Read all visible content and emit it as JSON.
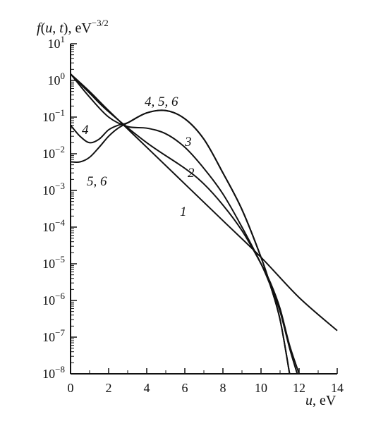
{
  "chart_data": {
    "type": "line",
    "y_scale": "log",
    "ylabel_parts": [
      "f",
      "(",
      "u",
      ", ",
      "t",
      "), eV",
      "−3/2"
    ],
    "xlabel_parts": [
      "u",
      ", eV"
    ],
    "xlim": [
      0,
      14
    ],
    "x_ticks": [
      "0",
      "2",
      "4",
      "6",
      "8",
      "10",
      "12",
      "14"
    ],
    "ylim": [
      1e-08,
      10
    ],
    "y_ticks": [
      {
        "base": "10",
        "exp": "1",
        "value": 10
      },
      {
        "base": "10",
        "exp": "0",
        "value": 1
      },
      {
        "base": "10",
        "exp": "−1",
        "value": 0.1
      },
      {
        "base": "10",
        "exp": "−2",
        "value": 0.01
      },
      {
        "base": "10",
        "exp": "−3",
        "value": 0.001
      },
      {
        "base": "10",
        "exp": "−4",
        "value": 0.0001
      },
      {
        "base": "10",
        "exp": "−5",
        "value": 1e-05
      },
      {
        "base": "10",
        "exp": "−6",
        "value": 1e-06
      },
      {
        "base": "10",
        "exp": "−7",
        "value": 1e-07
      },
      {
        "base": "10",
        "exp": "−8",
        "value": 1e-08
      }
    ],
    "grid": false,
    "series": [
      {
        "name": "1",
        "x": [
          0,
          1,
          2,
          4,
          6,
          8,
          10,
          12,
          14
        ],
        "y": [
          1.5,
          0.5,
          0.15,
          0.015,
          0.0015,
          0.00015,
          1.5e-05,
          1.2e-06,
          1.5e-07
        ]
      },
      {
        "name": "2",
        "x": [
          0,
          1,
          2,
          4,
          6,
          7,
          8,
          9,
          10,
          10.5,
          11,
          11.5,
          12
        ],
        "y": [
          1.5,
          0.45,
          0.14,
          0.02,
          0.004,
          0.0015,
          0.0004,
          8e-05,
          1e-05,
          3e-06,
          6e-07,
          6e-08,
          1e-08
        ]
      },
      {
        "name": "3",
        "x": [
          0,
          1,
          2,
          3,
          4,
          5,
          6,
          7,
          8,
          9,
          10,
          10.5,
          11,
          11.5,
          11.9
        ],
        "y": [
          1.5,
          0.35,
          0.1,
          0.055,
          0.05,
          0.035,
          0.015,
          0.004,
          0.0008,
          0.0001,
          1e-05,
          2.5e-06,
          5e-07,
          5e-08,
          1e-08
        ]
      },
      {
        "name": "4",
        "x": [
          0,
          0.5,
          1,
          1.5,
          2,
          2.5,
          3,
          4,
          5,
          6,
          7,
          8,
          9,
          10,
          10.5,
          11,
          11.5
        ],
        "y": [
          0.06,
          0.03,
          0.02,
          0.025,
          0.045,
          0.06,
          0.07,
          0.13,
          0.15,
          0.09,
          0.025,
          0.003,
          0.0003,
          1.5e-05,
          2.5e-06,
          3e-07,
          1e-08
        ]
      },
      {
        "name": "5, 6",
        "x": [
          0,
          0.5,
          1,
          1.5,
          2,
          2.5,
          3,
          4,
          5,
          6,
          7,
          8,
          9,
          10,
          10.5,
          11,
          11.5
        ],
        "y": [
          0.006,
          0.006,
          0.008,
          0.015,
          0.03,
          0.05,
          0.07,
          0.13,
          0.15,
          0.09,
          0.025,
          0.003,
          0.0003,
          1.5e-05,
          2.5e-06,
          3e-07,
          1e-08
        ]
      }
    ],
    "annotations": [
      "4, 5, 6",
      "3",
      "2",
      "1",
      "4",
      "5, 6"
    ]
  }
}
